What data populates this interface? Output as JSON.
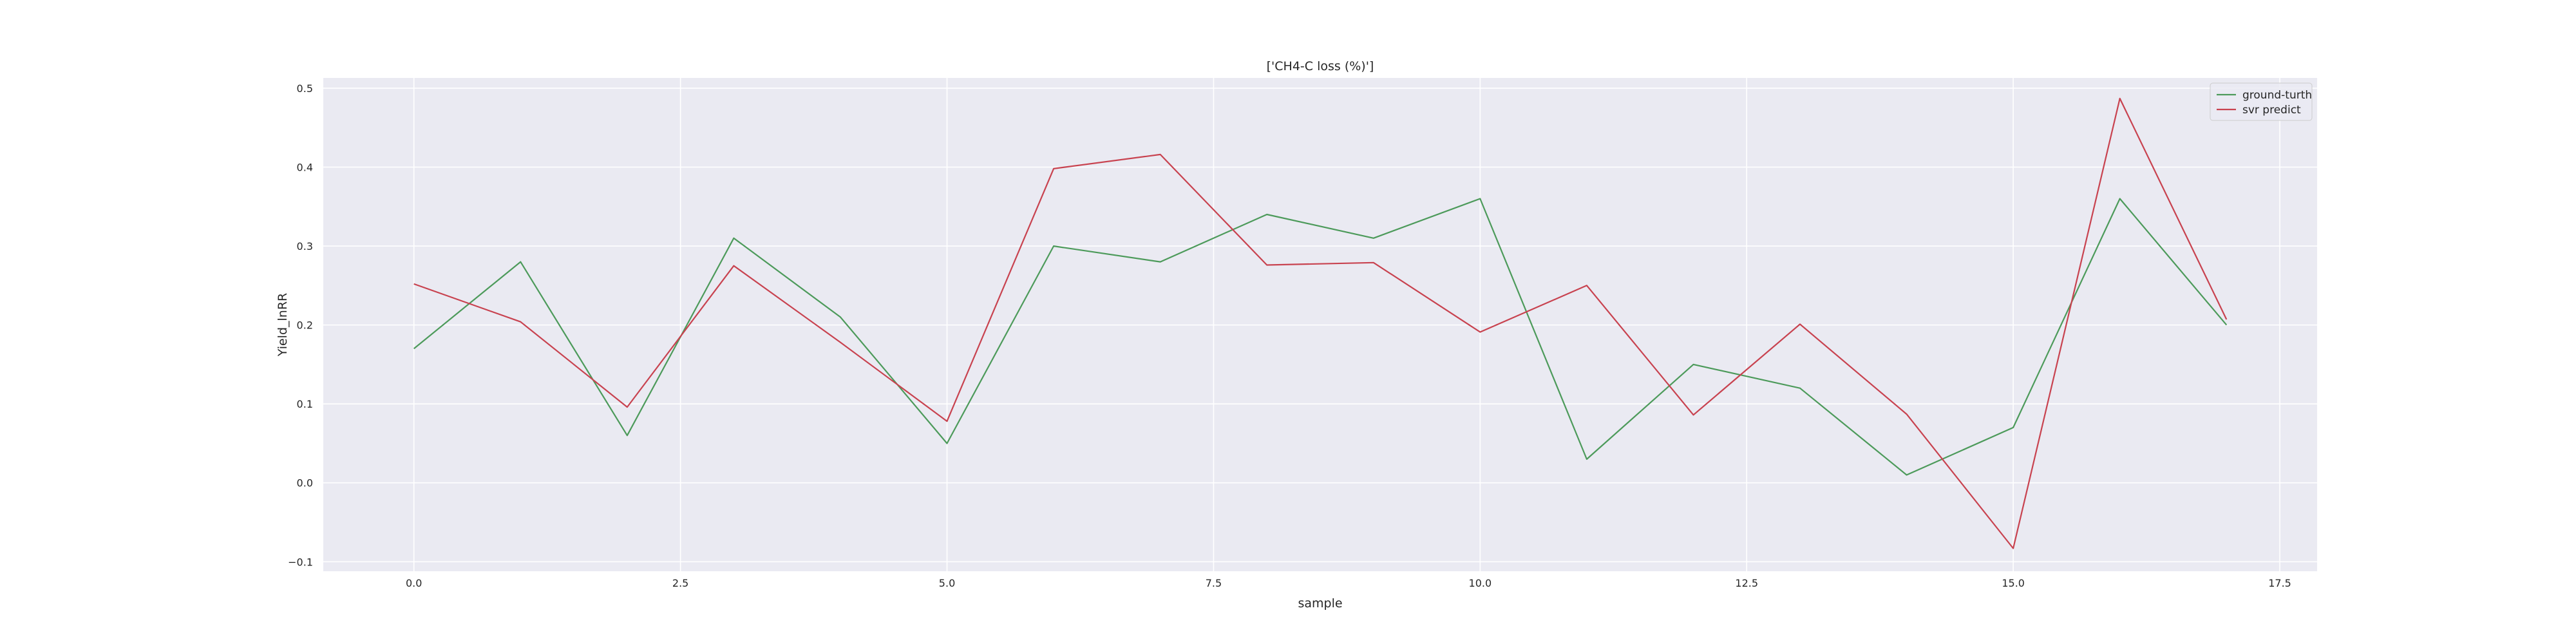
{
  "chart_data": {
    "type": "line",
    "title": "['CH4-C loss (%)']",
    "xlabel": "sample",
    "ylabel": "Yield_lnRR",
    "xlim": [
      -0.85,
      17.85
    ],
    "ylim": [
      -0.112,
      0.513
    ],
    "xticks": [
      "0.0",
      "2.5",
      "5.0",
      "7.5",
      "10.0",
      "12.5",
      "15.0",
      "17.5"
    ],
    "xtick_values": [
      0,
      2.5,
      5,
      7.5,
      10,
      12.5,
      15,
      17.5
    ],
    "yticks": [
      "−0.1",
      "0.0",
      "0.1",
      "0.2",
      "0.3",
      "0.4",
      "0.5"
    ],
    "ytick_values": [
      -0.1,
      0,
      0.1,
      0.2,
      0.3,
      0.4,
      0.5
    ],
    "grid": true,
    "legend": "top-right",
    "x": [
      0,
      1,
      2,
      3,
      4,
      5,
      6,
      7,
      8,
      9,
      10,
      11,
      12,
      13,
      14,
      15,
      16,
      17
    ],
    "series": [
      {
        "name": "ground-turth",
        "color": "#4c9a5a",
        "values": [
          0.17,
          0.28,
          0.06,
          0.31,
          0.21,
          0.05,
          0.3,
          0.28,
          0.34,
          0.31,
          0.36,
          0.03,
          0.15,
          0.12,
          0.01,
          0.07,
          0.36,
          0.2
        ]
      },
      {
        "name": "svr predict",
        "color": "#c8424f",
        "values": [
          0.252,
          0.204,
          0.096,
          0.275,
          0.178,
          0.078,
          0.398,
          0.416,
          0.276,
          0.279,
          0.191,
          0.25,
          0.086,
          0.201,
          0.087,
          -0.083,
          0.487,
          0.207
        ]
      }
    ]
  }
}
